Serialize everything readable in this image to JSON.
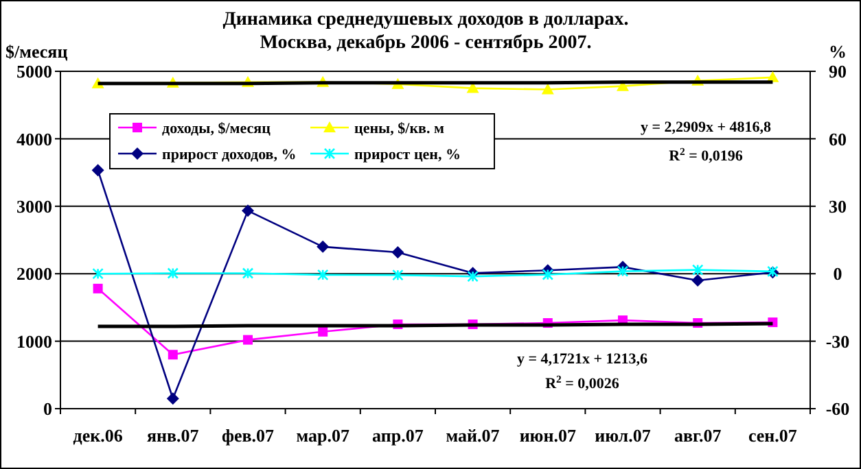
{
  "chart_data": {
    "type": "line",
    "title": "Динамика среднедушевых доходов в долларах. Москва, декабрь 2006 - сентябрь 2007.",
    "ylabel": "$/месяц",
    "y2label": "%",
    "categories": [
      "дек.06",
      "янв.07",
      "фев.07",
      "мар.07",
      "апр.07",
      "май.07",
      "июн.07",
      "июл.07",
      "авг.07",
      "сен.07"
    ],
    "series": [
      {
        "name": "доходы, $/месяц",
        "color": "#ff00ff",
        "marker": "square",
        "values": [
          1780,
          800,
          1020,
          1140,
          1250,
          1250,
          1270,
          1310,
          1270,
          1280
        ]
      },
      {
        "name": "цены, $/кв. м",
        "color": "#ffff00",
        "marker": "triangle",
        "values": [
          4820,
          4830,
          4840,
          4840,
          4810,
          4750,
          4730,
          4780,
          4860,
          4910
        ]
      },
      {
        "name": "прирост доходов, %",
        "color": "#000080",
        "marker": "diamond",
        "axis": "y2",
        "values": [
          46,
          -55.5,
          28,
          12,
          9.5,
          0.3,
          1.5,
          3,
          -3,
          0.6
        ]
      },
      {
        "name": "прирост цен, %",
        "color": "#00ffff",
        "marker": "cross",
        "axis": "y2",
        "values": [
          0,
          0.2,
          0.2,
          -0.5,
          -0.6,
          -1.2,
          -0.4,
          1.1,
          1.7,
          1
        ]
      },
      {
        "color": "#000000",
        "marker": "none",
        "values": [
          1220,
          1220,
          1230,
          1230,
          1230,
          1240,
          1240,
          1250,
          1250,
          1260
        ]
      },
      {
        "color": "#000000",
        "marker": "none",
        "values": [
          4820,
          4820,
          4820,
          4830,
          4830,
          4830,
          4830,
          4840,
          4840,
          4840
        ]
      }
    ],
    "ylim": [
      0,
      5000
    ],
    "yticks": [
      0,
      1000,
      2000,
      3000,
      4000,
      5000
    ],
    "y2lim": [
      -60,
      90
    ],
    "y2ticks": [
      -60,
      -30,
      0,
      30,
      60,
      90
    ],
    "grid": "y",
    "legend": "top left",
    "annotations": [
      "y = 2,2909x + 4816,8",
      "R$^{2}$ = 0,0196",
      "y = 4,1721x + 1213,6",
      "R$^{2}$ = 0,0026"
    ]
  }
}
